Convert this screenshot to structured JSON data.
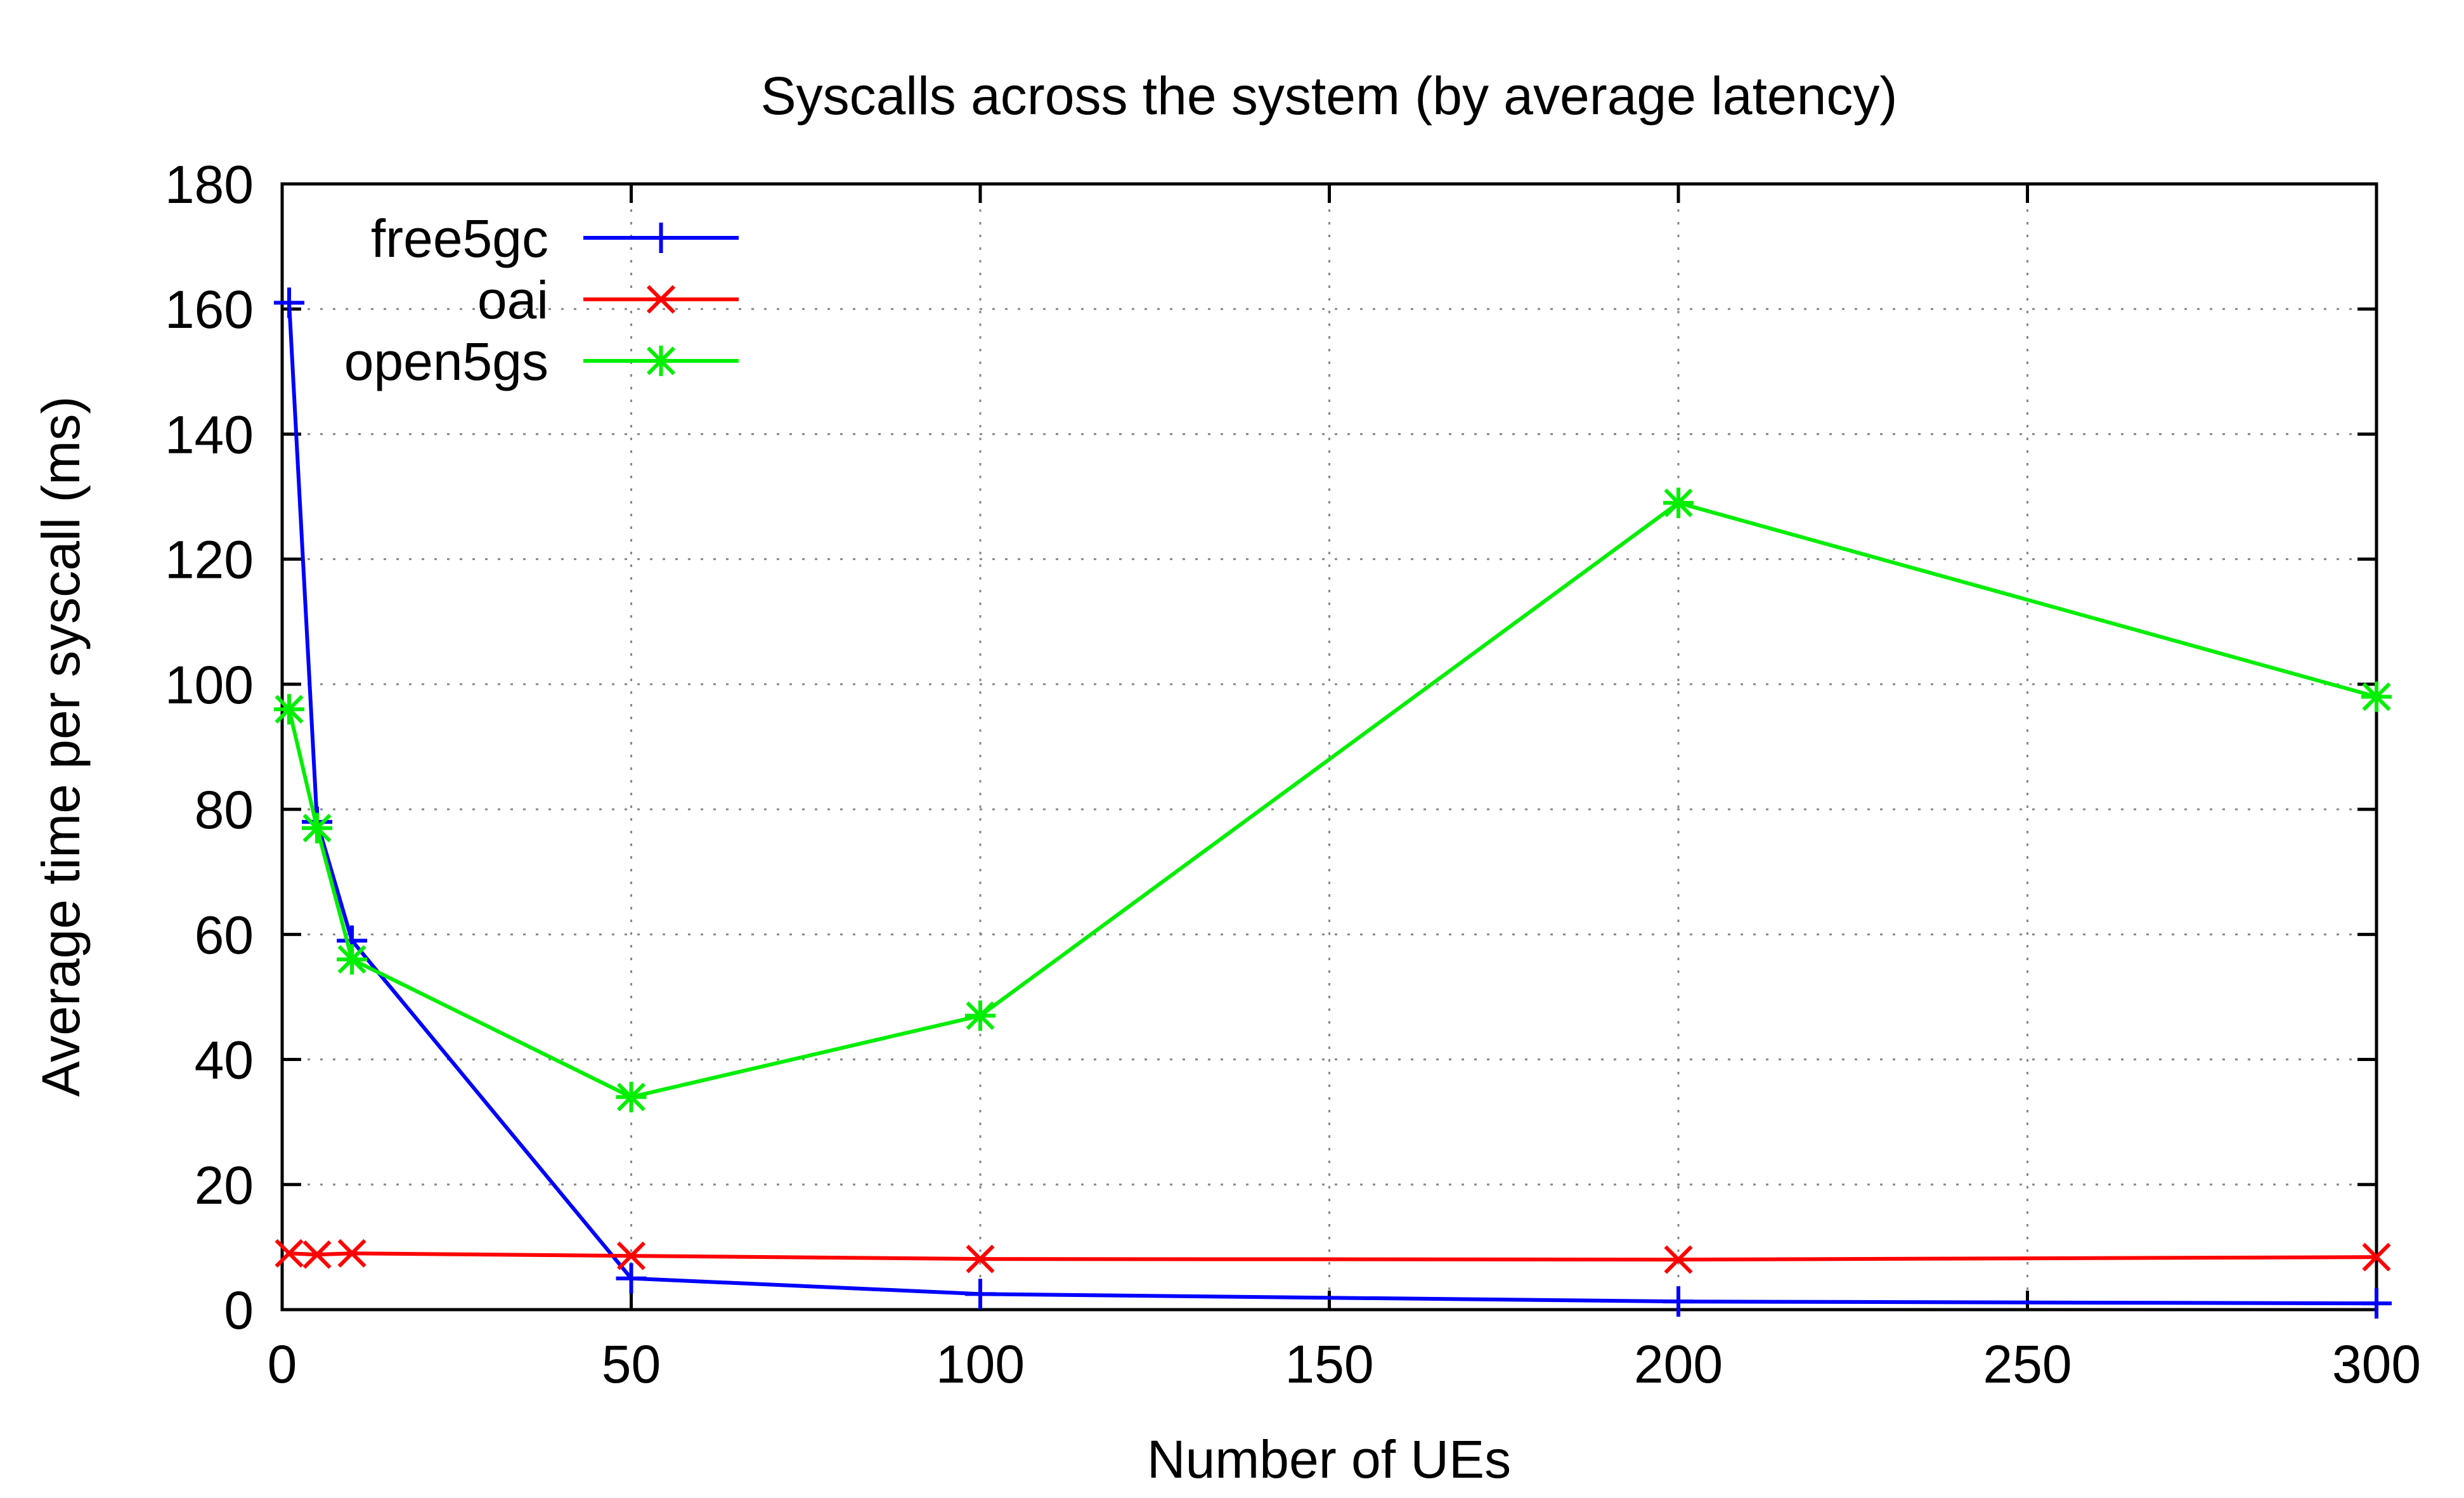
{
  "chart_data": {
    "type": "line",
    "title": "Syscalls across the system (by average latency)",
    "xlabel": "Number of UEs",
    "ylabel": "Average time per syscall (ms)",
    "xlim": [
      0,
      300
    ],
    "ylim": [
      0,
      180
    ],
    "xticks": [
      0,
      50,
      100,
      150,
      200,
      250,
      300
    ],
    "yticks": [
      0,
      20,
      40,
      60,
      80,
      100,
      120,
      140,
      160,
      180
    ],
    "grid": true,
    "legend_position": "top-left",
    "series": [
      {
        "name": "free5gc",
        "color": "#0000ff",
        "marker": "plus",
        "x": [
          1,
          5,
          10,
          50,
          100,
          200,
          300
        ],
        "y": [
          161,
          78,
          59,
          5,
          2.5,
          1.3,
          1
        ]
      },
      {
        "name": "oai",
        "color": "#ff0000",
        "marker": "cross",
        "x": [
          1,
          5,
          10,
          50,
          100,
          200,
          300
        ],
        "y": [
          9,
          8.8,
          9,
          8.6,
          8.1,
          8,
          8.4
        ]
      },
      {
        "name": "open5gs",
        "color": "#00ee00",
        "marker": "star",
        "x": [
          1,
          5,
          10,
          50,
          100,
          200,
          300
        ],
        "y": [
          96,
          77,
          56,
          34,
          47,
          129,
          98
        ]
      }
    ]
  }
}
